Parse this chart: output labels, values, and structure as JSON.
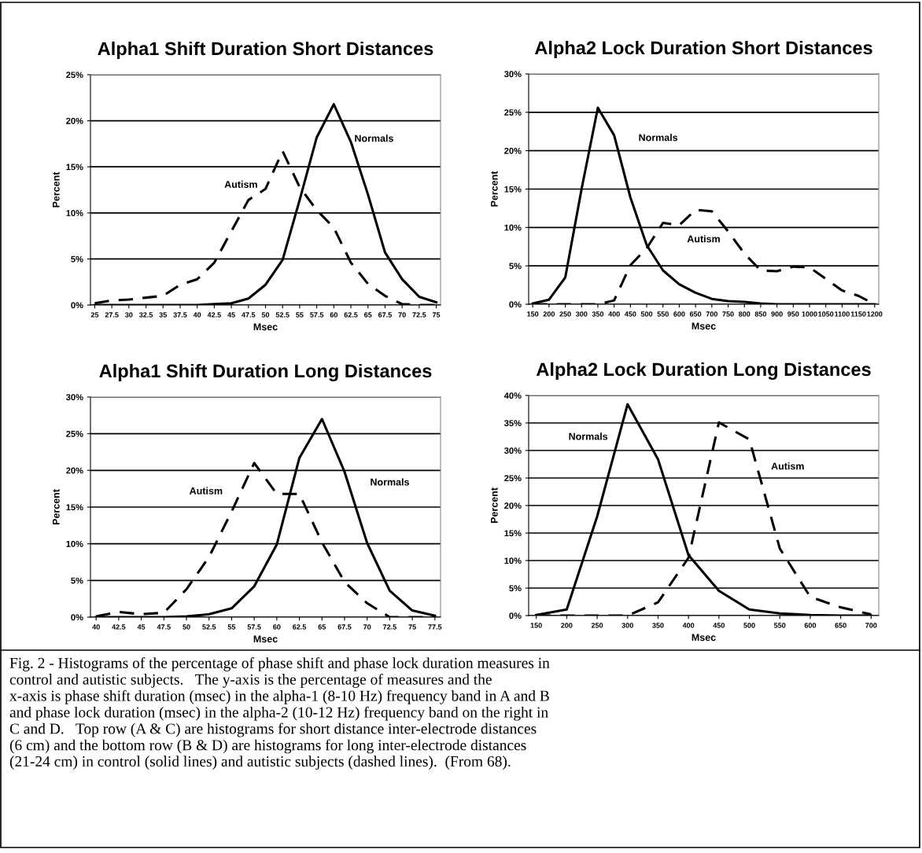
{
  "chart_data": [
    {
      "type": "line",
      "title": "Alpha1 Shift Duration Short Distances",
      "xlabel": "Msec",
      "ylabel": "Percent",
      "categories": [
        "25",
        "27.5",
        "30",
        "32.5",
        "35",
        "37.5",
        "40",
        "42.5",
        "45",
        "47.5",
        "50",
        "52.5",
        "55",
        "57.5",
        "60",
        "62.5",
        "65",
        "67.5",
        "70",
        "72.5",
        "75"
      ],
      "series": [
        {
          "color": "#000000",
          "line_style": "solid",
          "values": [
            0,
            0,
            0,
            0,
            0,
            0,
            0,
            0.1,
            0.2,
            0.7,
            2.2,
            4.9,
            11.4,
            18.2,
            21.8,
            17.7,
            12,
            5.7,
            2.8,
            0.9,
            0.3
          ]
        },
        {
          "color": "#000000",
          "line_style": "dashed",
          "values": [
            0.2,
            0.5,
            0.6,
            0.8,
            1.0,
            2.2,
            2.8,
            4.6,
            8.0,
            11.4,
            12.6,
            16.7,
            12.8,
            10.3,
            8.4,
            4.6,
            2.3,
            1.0,
            0.1,
            0,
            0
          ]
        }
      ],
      "ylim": [
        0,
        25
      ],
      "yticks": [
        {
          "value": 0,
          "label": "0%"
        },
        {
          "value": 5,
          "label": "5%"
        },
        {
          "value": 10,
          "label": "10%"
        },
        {
          "value": 15,
          "label": "15%"
        },
        {
          "value": 20,
          "label": "20%"
        },
        {
          "value": 25,
          "label": "25%"
        }
      ],
      "grid": "y",
      "legend": false,
      "marker": "none",
      "annotations": [
        "Normals",
        "Autism"
      ]
    },
    {
      "type": "line",
      "title": "Alpha2 Lock Duration Short Distances",
      "xlabel": "Msec",
      "ylabel": "Percent",
      "categories": [
        "150",
        "200",
        "250",
        "300",
        "350",
        "400",
        "450",
        "500",
        "550",
        "600",
        "650",
        "700",
        "750",
        "800",
        "850",
        "900",
        "950",
        "1000",
        "1050",
        "1100",
        "1150",
        "1200"
      ],
      "series": [
        {
          "color": "#000000",
          "line_style": "solid",
          "values": [
            0.1,
            0.6,
            3.5,
            15,
            25.6,
            22,
            13.9,
            7.7,
            4.4,
            2.6,
            1.5,
            0.7,
            0.4,
            0.3,
            0.1,
            0,
            0,
            0,
            0,
            0,
            0,
            0
          ]
        },
        {
          "color": "#000000",
          "line_style": "dashed",
          "values": [
            0,
            0,
            0,
            0,
            0,
            0.5,
            5.1,
            7.3,
            10.6,
            10.3,
            12.3,
            12.1,
            9.5,
            6.6,
            4.4,
            4.3,
            4.9,
            4.8,
            3.3,
            1.8,
            1.1,
            0
          ]
        }
      ],
      "ylim": [
        0,
        30
      ],
      "yticks": [
        {
          "value": 0,
          "label": "0%"
        },
        {
          "value": 5,
          "label": "5%"
        },
        {
          "value": 10,
          "label": "10%"
        },
        {
          "value": 15,
          "label": "15%"
        },
        {
          "value": 20,
          "label": "20%"
        },
        {
          "value": 25,
          "label": "25%"
        },
        {
          "value": 30,
          "label": "30%"
        }
      ],
      "grid": "y",
      "legend": false,
      "marker": "none",
      "annotations": [
        "Normals",
        "Autism"
      ]
    },
    {
      "type": "line",
      "title": "Alpha1 Shift Duration Long Distances",
      "xlabel": "Msec",
      "ylabel": "Percent",
      "categories": [
        "40",
        "42.5",
        "45",
        "47.5",
        "50",
        "52.5",
        "55",
        "57.5",
        "60",
        "62.5",
        "65",
        "67.5",
        "70",
        "72.5",
        "75",
        "77.5"
      ],
      "series": [
        {
          "color": "#000000",
          "line_style": "solid",
          "values": [
            0,
            0,
            0,
            0,
            0.1,
            0.4,
            1.2,
            4.2,
            9.9,
            21.7,
            27,
            19.8,
            10.1,
            3.6,
            0.9,
            0.2
          ]
        },
        {
          "color": "#000000",
          "line_style": "dashed",
          "values": [
            0.1,
            0.7,
            0.4,
            0.6,
            3.8,
            8.2,
            14.4,
            21,
            16.8,
            16.8,
            10.2,
            4.8,
            1.9,
            0,
            0,
            0
          ]
        }
      ],
      "ylim": [
        0,
        30
      ],
      "yticks": [
        {
          "value": 0,
          "label": "0%"
        },
        {
          "value": 5,
          "label": "5%"
        },
        {
          "value": 10,
          "label": "10%"
        },
        {
          "value": 15,
          "label": "15%"
        },
        {
          "value": 20,
          "label": "20%"
        },
        {
          "value": 25,
          "label": "25%"
        },
        {
          "value": 30,
          "label": "30%"
        }
      ],
      "grid": "y",
      "legend": false,
      "marker": "none",
      "annotations": [
        "Normals",
        "Autism"
      ]
    },
    {
      "type": "line",
      "title": "Alpha2 Lock Duration Long Distances",
      "xlabel": "Msec",
      "ylabel": "Percent",
      "categories": [
        "150",
        "200",
        "250",
        "300",
        "350",
        "400",
        "450",
        "500",
        "550",
        "600",
        "650",
        "700"
      ],
      "series": [
        {
          "color": "#000000",
          "line_style": "solid",
          "values": [
            0.1,
            1.1,
            18,
            38.4,
            28.4,
            11,
            4.5,
            1.1,
            0.4,
            0.1,
            0,
            0
          ]
        },
        {
          "color": "#000000",
          "line_style": "dashed",
          "values": [
            0,
            0,
            0,
            0,
            2.4,
            10.5,
            35.1,
            32,
            12.2,
            3.4,
            1.5,
            0.2
          ]
        }
      ],
      "ylim": [
        0,
        40
      ],
      "yticks": [
        {
          "value": 0,
          "label": "0%"
        },
        {
          "value": 5,
          "label": "5%"
        },
        {
          "value": 10,
          "label": "10%"
        },
        {
          "value": 15,
          "label": "15%"
        },
        {
          "value": 20,
          "label": "20%"
        },
        {
          "value": 25,
          "label": "25%"
        },
        {
          "value": 30,
          "label": "30%"
        },
        {
          "value": 35,
          "label": "35%"
        },
        {
          "value": 40,
          "label": "40%"
        }
      ],
      "grid": "y",
      "legend": false,
      "marker": "none",
      "annotations": [
        "Normals",
        "Autism",
        "Fig. 2 - Histograms of the percentage of phase shift and phase lock duration measures in\ncontrol and autistic subjects.   The y-axis is the percentage of measures and the\nx-axis is phase shift duration (msec) in the alpha-1 (8-10 Hz) frequency band in A and B\nand phase lock duration (msec) in the alpha-2 (10-12 Hz) frequency band on the right in\nC and D.   Top row (A & C) are histograms for short distance inter-electrode distances\n(6 cm) and the bottom row (B & D) are histograms for long inter-electrode distances\n(21-24 cm) in control (solid lines) and autistic subjects (dashed lines).  (From 68)."
      ]
    }
  ]
}
